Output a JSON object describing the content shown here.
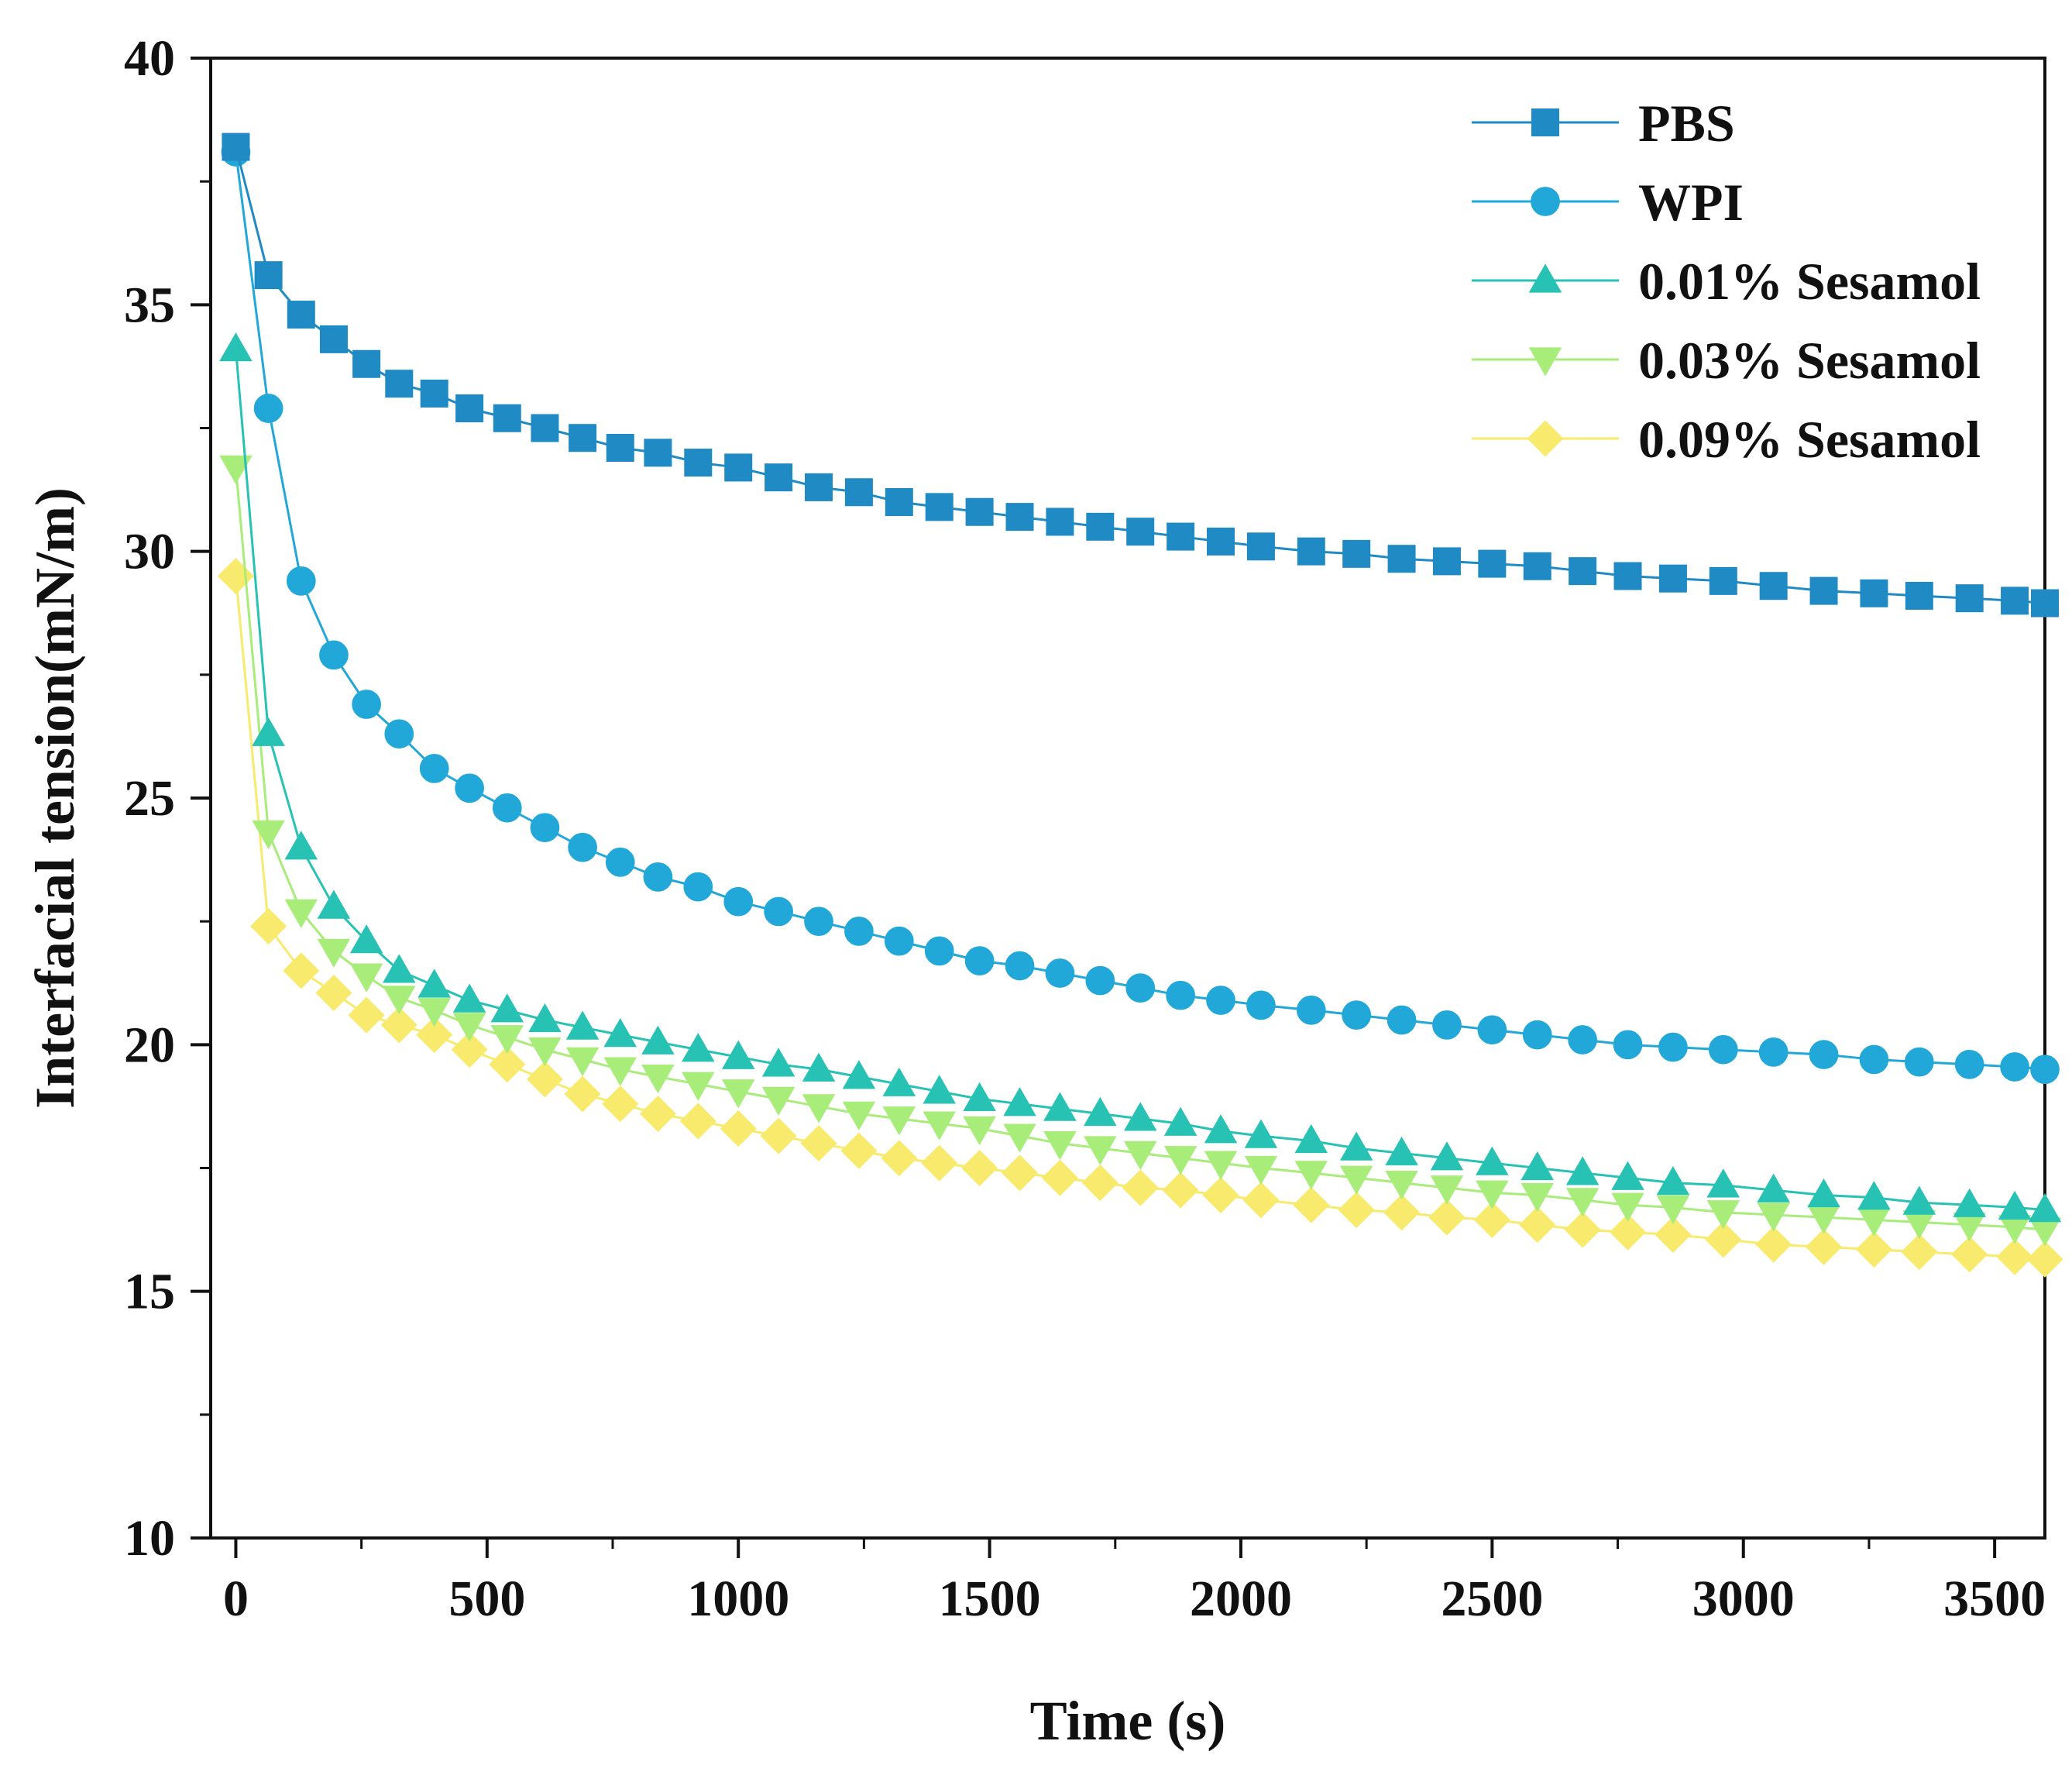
{
  "chart_data": {
    "type": "line",
    "title": "",
    "xlabel": "Time (s)",
    "ylabel": "Interfacial tension(mN/m)",
    "xlim": [
      -50,
      3600
    ],
    "ylim": [
      10,
      40
    ],
    "x_ticks": [
      0,
      500,
      1000,
      1500,
      2000,
      2500,
      3000,
      3500
    ],
    "x_tick_labels": [
      "0",
      "500",
      "1000",
      "1500",
      "2000",
      "2500",
      "3000",
      "3500"
    ],
    "y_ticks": [
      10,
      15,
      20,
      25,
      30,
      35,
      40
    ],
    "y_tick_labels": [
      "10",
      "15",
      "20",
      "25",
      "30",
      "35",
      "40"
    ],
    "legend_position": "top-right",
    "x": [
      0,
      65,
      130,
      195,
      260,
      325,
      395,
      465,
      540,
      615,
      690,
      765,
      840,
      920,
      1000,
      1080,
      1160,
      1240,
      1320,
      1400,
      1480,
      1560,
      1640,
      1720,
      1800,
      1880,
      1960,
      2040,
      2140,
      2230,
      2320,
      2410,
      2500,
      2590,
      2680,
      2770,
      2860,
      2960,
      3060,
      3160,
      3260,
      3350,
      3450,
      3540,
      3600
    ],
    "series": [
      {
        "name": "PBS",
        "marker": "square",
        "color": "#1f8ac4",
        "values": [
          38.2,
          35.6,
          34.8,
          34.3,
          33.8,
          33.4,
          33.2,
          32.9,
          32.7,
          32.5,
          32.3,
          32.1,
          32.0,
          31.8,
          31.7,
          31.5,
          31.3,
          31.2,
          31.0,
          30.9,
          30.8,
          30.7,
          30.6,
          30.5,
          30.4,
          30.3,
          30.2,
          30.1,
          30.0,
          29.95,
          29.85,
          29.8,
          29.75,
          29.7,
          29.6,
          29.5,
          29.45,
          29.4,
          29.3,
          29.2,
          29.15,
          29.1,
          29.05,
          29.0,
          28.95
        ]
      },
      {
        "name": "WPI",
        "marker": "circle",
        "color": "#22a8d8",
        "values": [
          38.1,
          32.9,
          29.4,
          27.9,
          26.9,
          26.3,
          25.6,
          25.2,
          24.8,
          24.4,
          24.0,
          23.7,
          23.4,
          23.2,
          22.9,
          22.7,
          22.5,
          22.3,
          22.1,
          21.9,
          21.7,
          21.6,
          21.45,
          21.3,
          21.15,
          21.0,
          20.9,
          20.8,
          20.7,
          20.6,
          20.5,
          20.4,
          20.3,
          20.2,
          20.1,
          20.0,
          19.95,
          19.9,
          19.85,
          19.8,
          19.7,
          19.65,
          19.6,
          19.55,
          19.5
        ]
      },
      {
        "name": "0.01% Sesamol",
        "marker": "triangle-up",
        "color": "#27c2b3",
        "values": [
          34.1,
          26.3,
          24.0,
          22.8,
          22.1,
          21.5,
          21.2,
          20.9,
          20.7,
          20.5,
          20.35,
          20.2,
          20.05,
          19.9,
          19.75,
          19.6,
          19.5,
          19.35,
          19.2,
          19.05,
          18.9,
          18.8,
          18.7,
          18.6,
          18.5,
          18.4,
          18.25,
          18.15,
          18.05,
          17.9,
          17.8,
          17.7,
          17.6,
          17.5,
          17.4,
          17.3,
          17.2,
          17.15,
          17.05,
          16.95,
          16.9,
          16.8,
          16.75,
          16.7,
          16.65
        ]
      },
      {
        "name": "0.03% Sesamol",
        "marker": "triangle-down",
        "color": "#a8ec7a",
        "values": [
          31.7,
          24.3,
          22.7,
          21.9,
          21.4,
          20.95,
          20.7,
          20.4,
          20.15,
          19.9,
          19.7,
          19.5,
          19.35,
          19.2,
          19.05,
          18.9,
          18.75,
          18.6,
          18.5,
          18.4,
          18.3,
          18.15,
          18.0,
          17.9,
          17.8,
          17.7,
          17.6,
          17.5,
          17.4,
          17.3,
          17.2,
          17.1,
          17.0,
          16.95,
          16.85,
          16.75,
          16.7,
          16.6,
          16.55,
          16.5,
          16.45,
          16.4,
          16.35,
          16.3,
          16.25
        ]
      },
      {
        "name": "0.09% Sesamol",
        "marker": "diamond",
        "color": "#f7ea6c",
        "values": [
          29.5,
          22.4,
          21.5,
          21.05,
          20.6,
          20.4,
          20.2,
          19.9,
          19.6,
          19.3,
          19.0,
          18.8,
          18.6,
          18.45,
          18.3,
          18.15,
          18.0,
          17.85,
          17.7,
          17.6,
          17.5,
          17.4,
          17.3,
          17.2,
          17.1,
          17.05,
          16.95,
          16.85,
          16.75,
          16.65,
          16.6,
          16.5,
          16.45,
          16.35,
          16.25,
          16.2,
          16.15,
          16.05,
          15.95,
          15.9,
          15.85,
          15.8,
          15.75,
          15.7,
          15.65
        ]
      }
    ]
  }
}
